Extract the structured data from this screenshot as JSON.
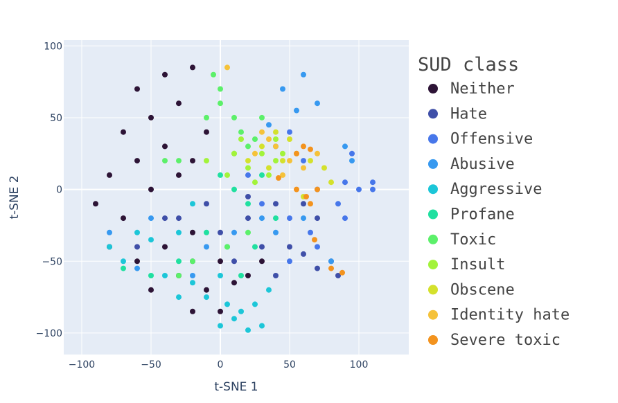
{
  "chart_data": {
    "type": "scatter",
    "xlabel": "t-SNE 1",
    "ylabel": "t-SNE 2",
    "xlim": [
      -113,
      136
    ],
    "ylim": [
      -115,
      104
    ],
    "x_ticks": [
      -100,
      -50,
      0,
      50,
      100
    ],
    "y_ticks": [
      -100,
      -50,
      0,
      50,
      100
    ],
    "x_tick_labels": [
      "−100",
      "−50",
      "0",
      "50",
      "100"
    ],
    "y_tick_labels": [
      "−100",
      "−50",
      "0",
      "50",
      "100"
    ],
    "grid": true,
    "plot_background": "#e5ecf6",
    "grid_color": "#ffffff",
    "legend": {
      "title": "SUD class",
      "placement": "right"
    },
    "series": [
      {
        "name": "Neither",
        "color": "#2d1436",
        "points": [
          [
            -60,
            70
          ],
          [
            -40,
            80
          ],
          [
            -20,
            85
          ],
          [
            -70,
            40
          ],
          [
            -50,
            50
          ],
          [
            -30,
            60
          ],
          [
            -10,
            40
          ],
          [
            -80,
            10
          ],
          [
            -60,
            20
          ],
          [
            -40,
            30
          ],
          [
            -20,
            20
          ],
          [
            -90,
            -10
          ],
          [
            -70,
            -20
          ],
          [
            -50,
            0
          ],
          [
            -30,
            10
          ],
          [
            -80,
            -40
          ],
          [
            -60,
            -50
          ],
          [
            -40,
            -40
          ],
          [
            -20,
            -30
          ],
          [
            -50,
            -70
          ],
          [
            -30,
            -60
          ],
          [
            -10,
            -70
          ],
          [
            0,
            -50
          ],
          [
            10,
            -65
          ],
          [
            20,
            -60
          ],
          [
            30,
            -50
          ],
          [
            -20,
            -85
          ],
          [
            0,
            -85
          ]
        ]
      },
      {
        "name": "Hate",
        "color": "#3f4fa8",
        "points": [
          [
            -30,
            -20
          ],
          [
            -10,
            -10
          ],
          [
            0,
            -30
          ],
          [
            20,
            -20
          ],
          [
            30,
            -40
          ],
          [
            10,
            -50
          ],
          [
            -20,
            -50
          ],
          [
            40,
            -10
          ],
          [
            50,
            -40
          ],
          [
            60,
            -45
          ],
          [
            70,
            -55
          ],
          [
            85,
            -60
          ],
          [
            80,
            -50
          ],
          [
            60,
            -10
          ],
          [
            70,
            -20
          ],
          [
            40,
            -60
          ],
          [
            -40,
            -20
          ],
          [
            -60,
            -40
          ],
          [
            20,
            -5
          ]
        ]
      },
      {
        "name": "Offensive",
        "color": "#4777ea",
        "points": [
          [
            40,
            30
          ],
          [
            50,
            40
          ],
          [
            60,
            20
          ],
          [
            30,
            -10
          ],
          [
            50,
            -20
          ],
          [
            70,
            0
          ],
          [
            90,
            5
          ],
          [
            110,
            5
          ],
          [
            100,
            0
          ],
          [
            90,
            -20
          ],
          [
            85,
            -10
          ],
          [
            50,
            -50
          ],
          [
            70,
            -40
          ],
          [
            65,
            -30
          ],
          [
            95,
            25
          ],
          [
            110,
            0
          ],
          [
            20,
            10
          ]
        ]
      },
      {
        "name": "Abusive",
        "color": "#3799f0",
        "points": [
          [
            45,
            70
          ],
          [
            60,
            80
          ],
          [
            70,
            60
          ],
          [
            55,
            55
          ],
          [
            35,
            45
          ],
          [
            90,
            30
          ],
          [
            95,
            20
          ],
          [
            40,
            -30
          ],
          [
            30,
            -20
          ],
          [
            10,
            -30
          ],
          [
            -10,
            -40
          ],
          [
            -20,
            -60
          ],
          [
            -50,
            -20
          ],
          [
            -60,
            -55
          ],
          [
            -80,
            -30
          ],
          [
            60,
            -20
          ],
          [
            80,
            -50
          ]
        ]
      },
      {
        "name": "Aggressive",
        "color": "#1cc6d8",
        "points": [
          [
            0,
            -95
          ],
          [
            10,
            -90
          ],
          [
            20,
            -98
          ],
          [
            30,
            -95
          ],
          [
            15,
            -85
          ],
          [
            25,
            -80
          ],
          [
            5,
            -80
          ],
          [
            -10,
            -75
          ],
          [
            -30,
            -75
          ],
          [
            -20,
            -65
          ],
          [
            -40,
            -60
          ],
          [
            0,
            -60
          ],
          [
            35,
            -70
          ],
          [
            -60,
            -30
          ],
          [
            -80,
            -40
          ],
          [
            -70,
            -50
          ],
          [
            -50,
            -35
          ],
          [
            -30,
            -30
          ],
          [
            -20,
            -10
          ]
        ]
      },
      {
        "name": "Profane",
        "color": "#20e0a0",
        "points": [
          [
            0,
            10
          ],
          [
            10,
            0
          ],
          [
            20,
            -10
          ],
          [
            -10,
            -30
          ],
          [
            -30,
            -50
          ],
          [
            5,
            -40
          ],
          [
            15,
            -60
          ],
          [
            25,
            -40
          ],
          [
            -50,
            -60
          ],
          [
            -70,
            -55
          ],
          [
            30,
            10
          ],
          [
            40,
            -20
          ]
        ]
      },
      {
        "name": "Toxic",
        "color": "#5cf06a",
        "points": [
          [
            0,
            60
          ],
          [
            10,
            50
          ],
          [
            15,
            40
          ],
          [
            20,
            30
          ],
          [
            30,
            50
          ],
          [
            -10,
            50
          ],
          [
            -5,
            80
          ],
          [
            0,
            70
          ],
          [
            10,
            25
          ],
          [
            25,
            35
          ],
          [
            -30,
            20
          ],
          [
            -40,
            20
          ],
          [
            5,
            -40
          ],
          [
            20,
            -30
          ],
          [
            -20,
            -50
          ],
          [
            -30,
            -60
          ]
        ]
      },
      {
        "name": "Insult",
        "color": "#a2f33a",
        "points": [
          [
            20,
            15
          ],
          [
            30,
            25
          ],
          [
            40,
            20
          ],
          [
            10,
            25
          ],
          [
            25,
            5
          ],
          [
            35,
            10
          ],
          [
            5,
            10
          ],
          [
            40,
            35
          ],
          [
            45,
            25
          ],
          [
            -10,
            20
          ],
          [
            15,
            35
          ]
        ]
      },
      {
        "name": "Obscene",
        "color": "#d4e12c",
        "points": [
          [
            30,
            30
          ],
          [
            40,
            40
          ],
          [
            50,
            35
          ],
          [
            45,
            20
          ],
          [
            35,
            15
          ],
          [
            20,
            20
          ],
          [
            55,
            25
          ],
          [
            65,
            20
          ],
          [
            75,
            15
          ],
          [
            60,
            -5
          ],
          [
            80,
            5
          ]
        ]
      },
      {
        "name": "Identity hate",
        "color": "#f5c23a",
        "points": [
          [
            30,
            40
          ],
          [
            40,
            30
          ],
          [
            50,
            20
          ],
          [
            25,
            25
          ],
          [
            45,
            10
          ],
          [
            35,
            35
          ],
          [
            60,
            15
          ],
          [
            70,
            25
          ],
          [
            5,
            85
          ]
        ]
      },
      {
        "name": "Severe toxic",
        "color": "#f3931e",
        "points": [
          [
            55,
            25
          ],
          [
            60,
            30
          ],
          [
            65,
            28
          ],
          [
            70,
            0
          ],
          [
            65,
            -10
          ],
          [
            62,
            -5
          ],
          [
            80,
            -55
          ],
          [
            88,
            -58
          ],
          [
            42,
            8
          ],
          [
            55,
            0
          ],
          [
            68,
            -35
          ]
        ]
      }
    ]
  }
}
